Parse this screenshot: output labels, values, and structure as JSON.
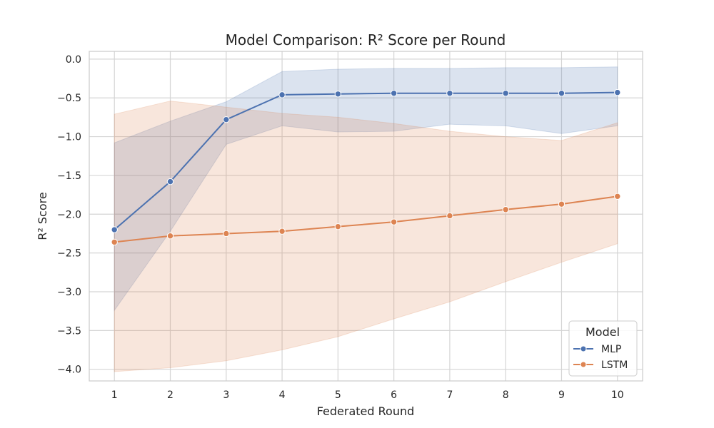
{
  "chart_data": {
    "type": "line",
    "title": "Model Comparison: R² Score per Round",
    "xlabel": "Federated Round",
    "ylabel": "R² Score",
    "x": [
      1,
      2,
      3,
      4,
      5,
      6,
      7,
      8,
      9,
      10
    ],
    "xlim": [
      0.55,
      10.45
    ],
    "ylim": [
      -4.15,
      0.1
    ],
    "yticks": [
      0.0,
      -0.5,
      -1.0,
      -1.5,
      -2.0,
      -2.5,
      -3.0,
      -3.5,
      -4.0
    ],
    "ytick_labels": [
      "0.0",
      "−0.5",
      "−1.0",
      "−1.5",
      "−2.0",
      "−2.5",
      "−3.0",
      "−3.5",
      "−4.0"
    ],
    "grid": true,
    "legend": {
      "title": "Model",
      "placement": "bottom-right"
    },
    "series": [
      {
        "name": "MLP",
        "color": "#4c72b0",
        "values": [
          -2.2,
          -1.58,
          -0.78,
          -0.46,
          -0.45,
          -0.44,
          -0.44,
          -0.44,
          -0.44,
          -0.43
        ],
        "ci_upper": [
          -1.08,
          -0.8,
          -0.55,
          -0.16,
          -0.13,
          -0.12,
          -0.12,
          -0.11,
          -0.11,
          -0.1
        ],
        "ci_lower": [
          -3.24,
          -2.22,
          -1.1,
          -0.86,
          -0.94,
          -0.93,
          -0.84,
          -0.86,
          -0.96,
          -0.86
        ]
      },
      {
        "name": "LSTM",
        "color": "#dd8452",
        "values": [
          -2.36,
          -2.28,
          -2.25,
          -2.22,
          -2.16,
          -2.1,
          -2.02,
          -1.94,
          -1.87,
          -1.77
        ],
        "ci_upper": [
          -0.71,
          -0.54,
          -0.62,
          -0.7,
          -0.75,
          -0.83,
          -0.93,
          -1.0,
          -1.05,
          -0.82
        ],
        "ci_lower": [
          -4.03,
          -3.98,
          -3.89,
          -3.75,
          -3.58,
          -3.35,
          -3.13,
          -2.87,
          -2.62,
          -2.38
        ]
      }
    ]
  }
}
